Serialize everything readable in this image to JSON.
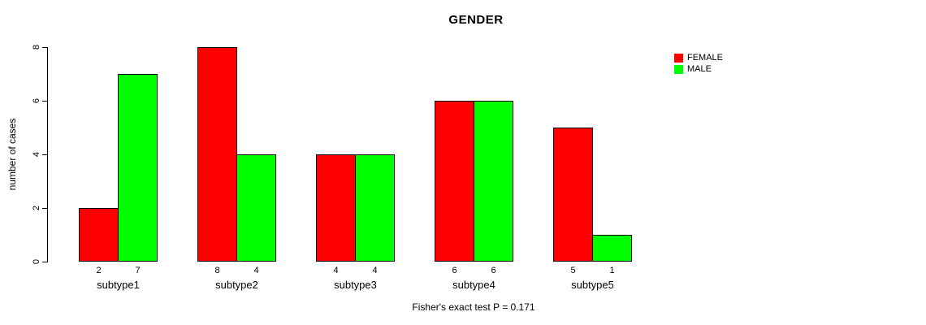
{
  "chart_data": {
    "type": "bar",
    "title": "GENDER",
    "ylabel": "number of cases",
    "caption": "Fisher's exact test P = 0.171",
    "categories": [
      "subtype1",
      "subtype2",
      "subtype3",
      "subtype4",
      "subtype5"
    ],
    "series": [
      {
        "name": "FEMALE",
        "color": "#ff0000",
        "values": [
          2,
          8,
          4,
          6,
          5
        ]
      },
      {
        "name": "MALE",
        "color": "#00ff00",
        "values": [
          7,
          4,
          4,
          6,
          1
        ]
      }
    ],
    "ylim": [
      0,
      8
    ],
    "yticks": [
      0,
      2,
      4,
      6,
      8
    ],
    "bar_value_labels": [
      [
        "2",
        "7"
      ],
      [
        "8",
        "4"
      ],
      [
        "4",
        "4"
      ],
      [
        "6",
        "6"
      ],
      [
        "5",
        "1"
      ]
    ],
    "legend_position": "top-right",
    "grid": "off",
    "axis_color": "#000000",
    "bar_border_color": "#000000"
  }
}
